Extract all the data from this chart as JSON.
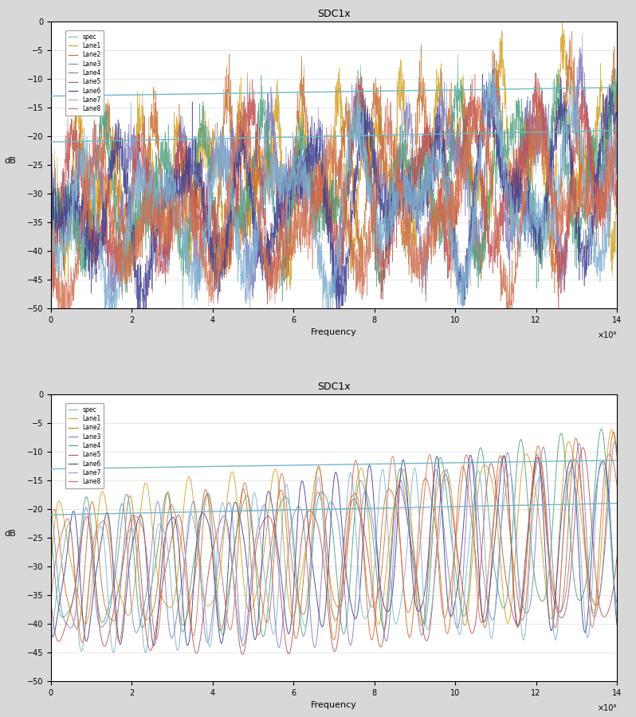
{
  "title": "SDC1x",
  "xlabel": "Frequency",
  "ylabel": "dB",
  "xlim": [
    0,
    14000000000.0
  ],
  "ylim": [
    -50,
    0
  ],
  "yticks": [
    0,
    -5,
    -10,
    -15,
    -20,
    -25,
    -30,
    -35,
    -40,
    -45,
    -50
  ],
  "xtick_vals": [
    0,
    2000000000.0,
    4000000000.0,
    6000000000.0,
    8000000000.0,
    10000000000.0,
    12000000000.0,
    14000000000.0
  ],
  "xtick_labels": [
    "0",
    "2",
    "4",
    "6",
    "8",
    "10",
    "12",
    "14"
  ],
  "xscale_label": "×10⁹",
  "legend_labels": [
    "spec",
    "Lane1",
    "Lane2",
    "Lane3",
    "Lane4",
    "Lane5",
    "Lane6",
    "Lane7",
    "Lane8"
  ],
  "spec_color": "#70b8c8",
  "bg_color": "#d8d8d8",
  "plot_bg": "#ffffff",
  "n_points": 3000,
  "spec_upper_start": -13.0,
  "spec_upper_end": -11.5,
  "spec_lower_start": -21.0,
  "spec_lower_end": -19.0,
  "lane_colors_top": [
    "#d4a020",
    "#c87030",
    "#8080c0",
    "#50a080",
    "#c05050",
    "#404090",
    "#80b0d0",
    "#d07050"
  ],
  "lane_colors_bottom": [
    "#d4a020",
    "#c87030",
    "#8080c0",
    "#50a080",
    "#c05050",
    "#404090",
    "#80b0d0",
    "#d07050"
  ]
}
